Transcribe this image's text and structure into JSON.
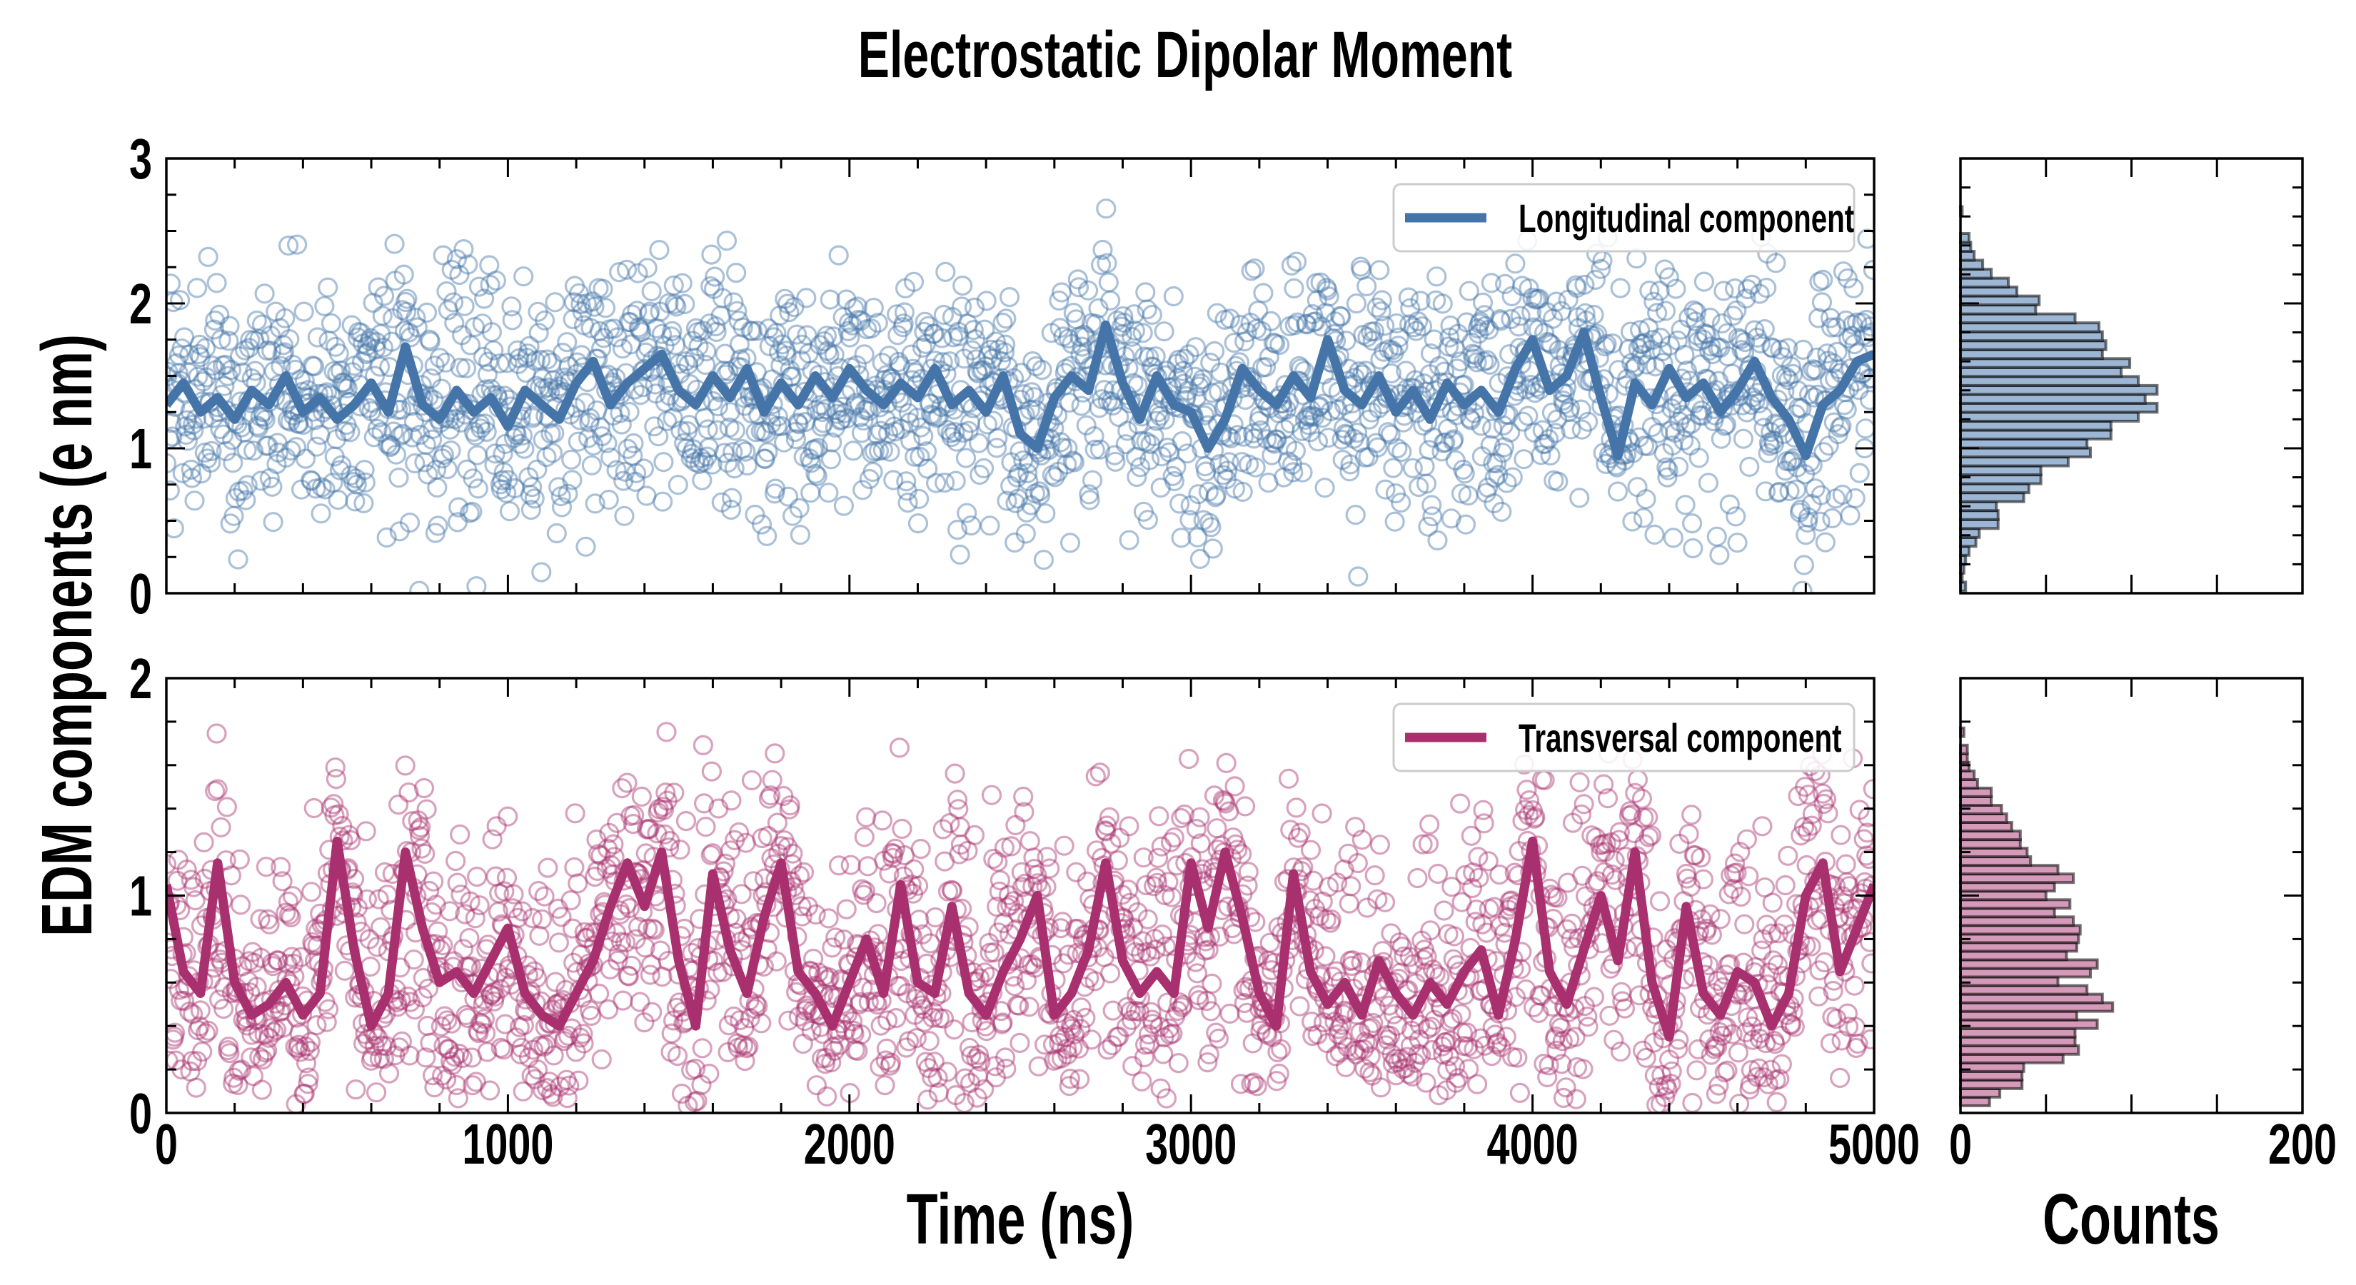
{
  "chart_data": {
    "type": "line",
    "title": "Electrostatic Dipolar Moment",
    "xlabel": "Time (ns)",
    "ylabel": "EDM components (e nm)",
    "hist_xlabel": "Counts",
    "xlim": [
      0,
      5000
    ],
    "xticks": [
      0,
      1000,
      2000,
      3000,
      4000,
      5000
    ],
    "hist_xlim": [
      0,
      200
    ],
    "hist_xticks": [
      0,
      200
    ],
    "scatter_points_per_panel": 2000,
    "line_time_step_ns": 50,
    "panels": [
      {
        "name": "Longitudinal component",
        "legend_label": "Longitudinal component",
        "legend_location": "upper right",
        "color": "#4575a8",
        "hist_fill": "#9db6d3",
        "ylim": [
          0,
          3
        ],
        "yticks": [
          0,
          1,
          2,
          3
        ],
        "moving_average": [
          1.3,
          1.45,
          1.25,
          1.35,
          1.2,
          1.4,
          1.3,
          1.5,
          1.25,
          1.35,
          1.2,
          1.3,
          1.45,
          1.25,
          1.7,
          1.3,
          1.2,
          1.4,
          1.25,
          1.35,
          1.15,
          1.4,
          1.3,
          1.2,
          1.45,
          1.6,
          1.3,
          1.45,
          1.55,
          1.65,
          1.4,
          1.3,
          1.5,
          1.35,
          1.55,
          1.25,
          1.45,
          1.3,
          1.5,
          1.35,
          1.55,
          1.4,
          1.3,
          1.45,
          1.35,
          1.55,
          1.3,
          1.4,
          1.25,
          1.5,
          1.1,
          1.0,
          1.35,
          1.5,
          1.4,
          1.85,
          1.45,
          1.2,
          1.5,
          1.3,
          1.25,
          1.0,
          1.2,
          1.55,
          1.4,
          1.3,
          1.5,
          1.35,
          1.75,
          1.4,
          1.3,
          1.5,
          1.25,
          1.4,
          1.2,
          1.45,
          1.3,
          1.4,
          1.25,
          1.55,
          1.75,
          1.4,
          1.5,
          1.8,
          1.35,
          0.95,
          1.45,
          1.3,
          1.55,
          1.35,
          1.45,
          1.25,
          1.4,
          1.6,
          1.35,
          1.2,
          0.95,
          1.3,
          1.4,
          1.6,
          1.65
        ],
        "histogram": {
          "bin_start": 0.015,
          "bin_width": 0.0617,
          "counts": [
            3,
            1,
            2,
            3,
            5,
            9,
            11,
            22,
            22,
            21,
            37,
            40,
            47,
            47,
            63,
            76,
            74,
            88,
            88,
            104,
            115,
            108,
            115,
            104,
            94,
            99,
            83,
            85,
            83,
            81,
            67,
            44,
            46,
            33,
            28,
            18,
            13,
            8,
            6,
            5,
            0,
            0,
            1
          ]
        }
      },
      {
        "name": "Transversal component",
        "legend_label": "Transversal component",
        "legend_location": "upper right",
        "color": "#a8306e",
        "hist_fill": "#d59ab9",
        "ylim": [
          0,
          2
        ],
        "yticks": [
          0,
          1,
          2
        ],
        "moving_average": [
          1.05,
          0.65,
          0.55,
          1.15,
          0.6,
          0.45,
          0.5,
          0.6,
          0.45,
          0.55,
          1.25,
          0.75,
          0.4,
          0.55,
          1.2,
          0.85,
          0.6,
          0.65,
          0.55,
          0.7,
          0.85,
          0.55,
          0.45,
          0.4,
          0.55,
          0.7,
          0.95,
          1.15,
          0.95,
          1.2,
          0.7,
          0.4,
          1.1,
          0.75,
          0.55,
          0.9,
          1.15,
          0.65,
          0.55,
          0.4,
          0.6,
          0.8,
          0.55,
          1.05,
          0.6,
          0.55,
          0.95,
          0.55,
          0.45,
          0.65,
          0.8,
          1.0,
          0.45,
          0.55,
          0.75,
          1.15,
          0.7,
          0.55,
          0.65,
          0.55,
          1.15,
          0.85,
          1.2,
          0.9,
          0.55,
          0.4,
          1.1,
          0.65,
          0.5,
          0.6,
          0.45,
          0.7,
          0.55,
          0.45,
          0.6,
          0.5,
          0.65,
          0.75,
          0.45,
          0.8,
          1.25,
          0.65,
          0.5,
          0.75,
          1.0,
          0.7,
          1.2,
          0.6,
          0.35,
          0.95,
          0.55,
          0.45,
          0.65,
          0.6,
          0.4,
          0.55,
          1.0,
          1.15,
          0.65,
          0.85,
          1.05
        ],
        "histogram": {
          "bin_start": 0.033,
          "bin_width": 0.0395,
          "counts": [
            17,
            23,
            36,
            36,
            37,
            60,
            69,
            67,
            67,
            80,
            68,
            89,
            83,
            74,
            57,
            76,
            80,
            62,
            68,
            69,
            70,
            66,
            55,
            64,
            50,
            55,
            66,
            57,
            41,
            39,
            35,
            35,
            30,
            27,
            24,
            18,
            18,
            10,
            8,
            5,
            4,
            4,
            0,
            2
          ]
        }
      }
    ]
  }
}
